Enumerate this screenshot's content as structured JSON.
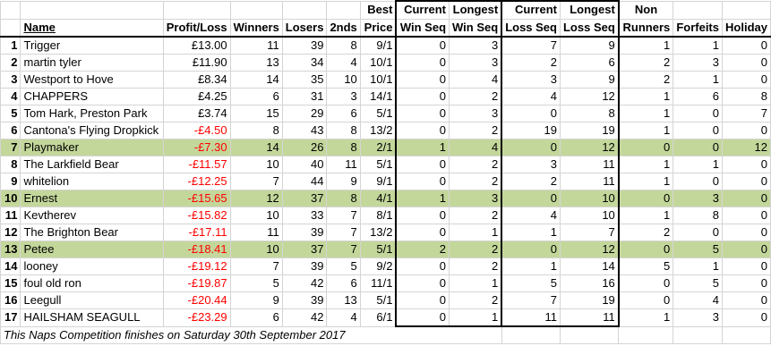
{
  "headers": {
    "row1": {
      "best": "Best",
      "current_win": "Current",
      "longest_win": "Longest",
      "current_loss": "Current",
      "longest_loss": "Longest",
      "non": "Non"
    },
    "row2": {
      "name": "Name",
      "profit": "Profit/Loss",
      "winners": "Winners",
      "losers": "Losers",
      "seconds": "2nds",
      "price": "Price",
      "win_seq_current": "Win Seq",
      "win_seq_longest": "Win Seq",
      "loss_seq_current": "Loss Seq",
      "loss_seq_longest": "Loss Seq",
      "runners": "Runners",
      "forfeits": "Forfeits",
      "holiday": "Holiday"
    }
  },
  "rows": [
    {
      "pos": "1",
      "name": "Trigger",
      "profit": "£13.00",
      "neg": false,
      "winners": "11",
      "losers": "39",
      "seconds": "8",
      "price": "9/1",
      "cws": "0",
      "lws": "3",
      "cls": "7",
      "lls": "9",
      "non": "1",
      "forfeits": "1",
      "holiday": "0",
      "hl": false
    },
    {
      "pos": "2",
      "name": "martin tyler",
      "profit": "£11.90",
      "neg": false,
      "winners": "13",
      "losers": "34",
      "seconds": "4",
      "price": "10/1",
      "cws": "0",
      "lws": "3",
      "cls": "2",
      "lls": "6",
      "non": "2",
      "forfeits": "3",
      "holiday": "0",
      "hl": false
    },
    {
      "pos": "3",
      "name": "Westport to Hove",
      "profit": "£8.34",
      "neg": false,
      "winners": "14",
      "losers": "35",
      "seconds": "10",
      "price": "10/1",
      "cws": "0",
      "lws": "4",
      "cls": "3",
      "lls": "9",
      "non": "2",
      "forfeits": "1",
      "holiday": "0",
      "hl": false
    },
    {
      "pos": "4",
      "name": "CHAPPERS",
      "profit": "£4.25",
      "neg": false,
      "winners": "6",
      "losers": "31",
      "seconds": "3",
      "price": "14/1",
      "cws": "0",
      "lws": "2",
      "cls": "4",
      "lls": "12",
      "non": "1",
      "forfeits": "6",
      "holiday": "8",
      "hl": false
    },
    {
      "pos": "5",
      "name": "Tom Hark, Preston Park",
      "profit": "£3.74",
      "neg": false,
      "winners": "15",
      "losers": "29",
      "seconds": "6",
      "price": "5/1",
      "cws": "0",
      "lws": "3",
      "cls": "0",
      "lls": "8",
      "non": "1",
      "forfeits": "0",
      "holiday": "7",
      "hl": false
    },
    {
      "pos": "6",
      "name": "Cantona's Flying Dropkick",
      "profit": "-£4.50",
      "neg": true,
      "winners": "8",
      "losers": "43",
      "seconds": "8",
      "price": "13/2",
      "cws": "0",
      "lws": "2",
      "cls": "19",
      "lls": "19",
      "non": "1",
      "forfeits": "0",
      "holiday": "0",
      "hl": false
    },
    {
      "pos": "7",
      "name": "Playmaker",
      "profit": "-£7.30",
      "neg": true,
      "winners": "14",
      "losers": "26",
      "seconds": "8",
      "price": "2/1",
      "cws": "1",
      "lws": "4",
      "cls": "0",
      "lls": "12",
      "non": "0",
      "forfeits": "0",
      "holiday": "12",
      "hl": true
    },
    {
      "pos": "8",
      "name": "The Larkfield Bear",
      "profit": "-£11.57",
      "neg": true,
      "winners": "10",
      "losers": "40",
      "seconds": "11",
      "price": "5/1",
      "cws": "0",
      "lws": "2",
      "cls": "3",
      "lls": "11",
      "non": "1",
      "forfeits": "1",
      "holiday": "0",
      "hl": false
    },
    {
      "pos": "9",
      "name": "whitelion",
      "profit": "-£12.25",
      "neg": true,
      "winners": "7",
      "losers": "44",
      "seconds": "9",
      "price": "9/1",
      "cws": "0",
      "lws": "2",
      "cls": "2",
      "lls": "11",
      "non": "1",
      "forfeits": "0",
      "holiday": "0",
      "hl": false
    },
    {
      "pos": "10",
      "name": "Ernest",
      "profit": "-£15.65",
      "neg": true,
      "winners": "12",
      "losers": "37",
      "seconds": "8",
      "price": "4/1",
      "cws": "1",
      "lws": "3",
      "cls": "0",
      "lls": "10",
      "non": "0",
      "forfeits": "3",
      "holiday": "0",
      "hl": true
    },
    {
      "pos": "11",
      "name": "Kevtherev",
      "profit": "-£15.82",
      "neg": true,
      "winners": "10",
      "losers": "33",
      "seconds": "7",
      "price": "8/1",
      "cws": "0",
      "lws": "2",
      "cls": "4",
      "lls": "10",
      "non": "1",
      "forfeits": "8",
      "holiday": "0",
      "hl": false
    },
    {
      "pos": "12",
      "name": "The Brighton Bear",
      "profit": "-£17.11",
      "neg": true,
      "winners": "11",
      "losers": "39",
      "seconds": "7",
      "price": "13/2",
      "cws": "0",
      "lws": "1",
      "cls": "1",
      "lls": "7",
      "non": "2",
      "forfeits": "0",
      "holiday": "0",
      "hl": false
    },
    {
      "pos": "13",
      "name": "Petee",
      "profit": "-£18.41",
      "neg": true,
      "winners": "10",
      "losers": "37",
      "seconds": "7",
      "price": "5/1",
      "cws": "2",
      "lws": "2",
      "cls": "0",
      "lls": "12",
      "non": "0",
      "forfeits": "5",
      "holiday": "0",
      "hl": true
    },
    {
      "pos": "14",
      "name": "looney",
      "profit": "-£19.12",
      "neg": true,
      "winners": "7",
      "losers": "39",
      "seconds": "5",
      "price": "9/2",
      "cws": "0",
      "lws": "2",
      "cls": "1",
      "lls": "14",
      "non": "5",
      "forfeits": "1",
      "holiday": "0",
      "hl": false
    },
    {
      "pos": "15",
      "name": "foul old ron",
      "profit": "-£19.87",
      "neg": true,
      "winners": "5",
      "losers": "42",
      "seconds": "6",
      "price": "11/1",
      "cws": "0",
      "lws": "1",
      "cls": "5",
      "lls": "16",
      "non": "0",
      "forfeits": "5",
      "holiday": "0",
      "hl": false
    },
    {
      "pos": "16",
      "name": "Leegull",
      "profit": "-£20.44",
      "neg": true,
      "winners": "9",
      "losers": "39",
      "seconds": "13",
      "price": "5/1",
      "cws": "0",
      "lws": "2",
      "cls": "7",
      "lls": "19",
      "non": "0",
      "forfeits": "4",
      "holiday": "0",
      "hl": false
    },
    {
      "pos": "17",
      "name": "HAILSHAM SEAGULL",
      "profit": "-£23.29",
      "neg": true,
      "winners": "6",
      "losers": "42",
      "seconds": "4",
      "price": "6/1",
      "cws": "0",
      "lws": "1",
      "cls": "11",
      "lls": "11",
      "non": "1",
      "forfeits": "3",
      "holiday": "0",
      "hl": false
    }
  ],
  "footer": "This Naps Competition finishes on Saturday 30th September 2017",
  "colors": {
    "highlight": "#c4d79b",
    "negative": "#ff0000"
  }
}
